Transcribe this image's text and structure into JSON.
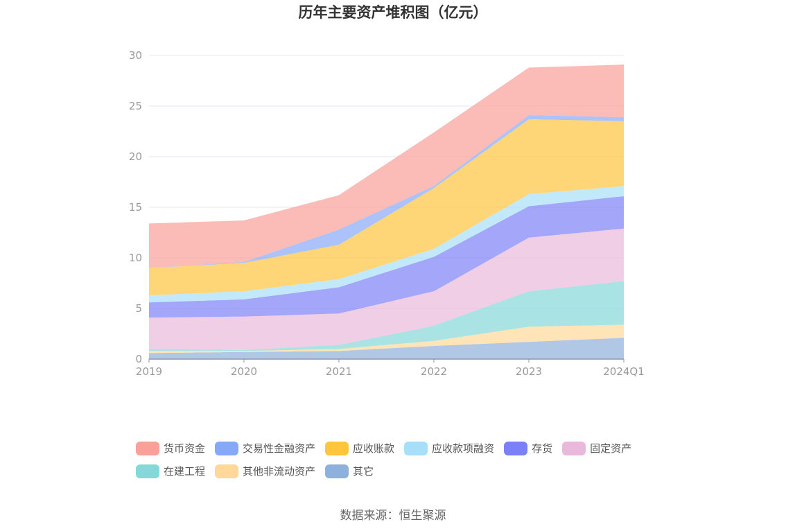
{
  "chart_data": {
    "type": "area",
    "stacked": true,
    "title": "历年主要资产堆积图（亿元）",
    "categories": [
      "2019",
      "2020",
      "2021",
      "2022",
      "2023",
      "2024Q1"
    ],
    "ylim": [
      0,
      30
    ],
    "yticks": [
      "0",
      "5",
      "10",
      "15",
      "20",
      "25",
      "30"
    ],
    "grid": true,
    "legend_position": "bottom",
    "series": [
      {
        "name": "其它",
        "color": "#8eb0dc",
        "values": [
          0.6,
          0.7,
          0.8,
          1.3,
          1.7,
          2.1
        ]
      },
      {
        "name": "其他非流动资产",
        "color": "#ffd899",
        "values": [
          0.2,
          0.1,
          0.2,
          0.5,
          1.5,
          1.3
        ]
      },
      {
        "name": "在建工程",
        "color": "#86d7d9",
        "values": [
          0.2,
          0.1,
          0.4,
          1.5,
          3.5,
          4.3
        ]
      },
      {
        "name": "固定资产",
        "color": "#e9b9dc",
        "values": [
          3.1,
          3.3,
          3.1,
          3.4,
          5.3,
          5.2
        ]
      },
      {
        "name": "存货",
        "color": "#7c80f7",
        "values": [
          1.5,
          1.7,
          2.6,
          3.4,
          3.1,
          3.2
        ]
      },
      {
        "name": "应收款项融资",
        "color": "#a8dff8",
        "values": [
          0.7,
          0.8,
          0.8,
          0.8,
          1.2,
          1.0
        ]
      },
      {
        "name": "应收账款",
        "color": "#ffc53d",
        "values": [
          2.7,
          2.8,
          3.4,
          6.0,
          7.4,
          6.4
        ]
      },
      {
        "name": "交易性金融资产",
        "color": "#87a8f8",
        "values": [
          0.0,
          0.1,
          1.5,
          0.2,
          0.4,
          0.4
        ]
      },
      {
        "name": "货币资金",
        "color": "#f9a09a",
        "values": [
          4.4,
          4.1,
          3.4,
          5.3,
          4.7,
          5.2
        ]
      }
    ]
  },
  "legend": {
    "row1": [
      {
        "label": "货币资金",
        "color": "#f9a09a"
      },
      {
        "label": "交易性金融资产",
        "color": "#87a8f8"
      },
      {
        "label": "应收账款",
        "color": "#ffc53d"
      },
      {
        "label": "应收款项融资",
        "color": "#a8dff8"
      },
      {
        "label": "存货",
        "color": "#7c80f7"
      },
      {
        "label": "固定资产",
        "color": "#e9b9dc"
      }
    ],
    "row2": [
      {
        "label": "在建工程",
        "color": "#86d7d9"
      },
      {
        "label": "其他非流动资产",
        "color": "#ffd899"
      },
      {
        "label": "其它",
        "color": "#8eb0dc"
      }
    ]
  },
  "source": "数据来源：恒生聚源"
}
